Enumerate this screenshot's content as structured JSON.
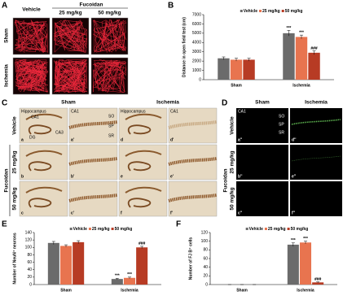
{
  "panel_a": {
    "letter": "A",
    "group_header": "Fucoidan",
    "columns": [
      "Vehicle",
      "25 mg/kg",
      "50 mg/kg"
    ],
    "rows": [
      "Sham",
      "Ischemia"
    ]
  },
  "panel_c": {
    "letter": "C",
    "columns": [
      "Sham",
      "Ischemia"
    ],
    "image_headers": [
      "Hippocampus",
      "CA1",
      "Hippocampus",
      "CA1"
    ],
    "hippocampus_regions": [
      "CA1",
      "DG",
      "CA3"
    ],
    "ca1_layers": [
      "SO",
      "SP",
      "SR"
    ],
    "group_label": "Fucoidan",
    "rows": [
      "Vehicle",
      "25 mg/kg",
      "50 mg/kg"
    ],
    "tiles": [
      [
        "a",
        "a'",
        "d",
        "d'"
      ],
      [
        "b",
        "b'",
        "e",
        "e'"
      ],
      [
        "c",
        "c'",
        "f",
        "f'"
      ]
    ]
  },
  "panel_d": {
    "letter": "D",
    "columns": [
      "Sham",
      "Ischemia"
    ],
    "image_header": "CA1",
    "layers": [
      "SO",
      "SP",
      "SR"
    ],
    "group_label": "Fucoidan",
    "rows": [
      "Vehicle",
      "25 mg/kg",
      "50 mg/kg"
    ],
    "tiles": [
      [
        "a''",
        "d''"
      ],
      [
        "b''",
        "e''"
      ],
      [
        "c''",
        "f''"
      ]
    ]
  },
  "chart_data": [
    {
      "type": "bar",
      "letter": "B",
      "y_label": "Distance in open field test (cm)",
      "categories": [
        "Sham",
        "Ischemia"
      ],
      "series": [
        {
          "name": "Vehicle",
          "color": "#6b6b6b",
          "values": [
            2300,
            5000
          ],
          "errors": [
            150,
            300
          ],
          "significance": [
            null,
            "***"
          ]
        },
        {
          "name": "25 mg/kg",
          "color": "#e8744f",
          "values": [
            2150,
            4600
          ],
          "errors": [
            150,
            200
          ],
          "significance": [
            null,
            "***"
          ]
        },
        {
          "name": "50 mg/kg",
          "color": "#b73b24",
          "values": [
            2150,
            2900
          ],
          "errors": [
            150,
            200
          ],
          "significance": [
            null,
            "###"
          ]
        }
      ],
      "ylim": [
        0,
        7000
      ],
      "yticks": [
        0,
        1000,
        2000,
        3000,
        4000,
        5000,
        6000,
        7000
      ]
    },
    {
      "type": "bar",
      "letter": "E",
      "y_label": "Number of NeuN⁺ neurons",
      "categories": [
        "Sham",
        "Ischemia"
      ],
      "series": [
        {
          "name": "Vehicle",
          "color": "#6b6b6b",
          "values": [
            112,
            15
          ],
          "errors": [
            4,
            2
          ],
          "significance": [
            null,
            "***"
          ]
        },
        {
          "name": "25 mg/kg",
          "color": "#e8744f",
          "values": [
            104,
            18
          ],
          "errors": [
            3,
            2
          ],
          "significance": [
            null,
            "***"
          ]
        },
        {
          "name": "50 mg/kg",
          "color": "#b73b24",
          "values": [
            114,
            100
          ],
          "errors": [
            4,
            3
          ],
          "significance": [
            null,
            "###"
          ]
        }
      ],
      "ylim": [
        0,
        140
      ],
      "yticks": [
        0,
        20,
        40,
        60,
        80,
        100,
        120,
        140
      ]
    },
    {
      "type": "bar",
      "letter": "F",
      "y_label": "Number of FJ B⁺ cells",
      "categories": [
        "Sham",
        "Ischemia"
      ],
      "series": [
        {
          "name": "Vehicle",
          "color": "#6b6b6b",
          "values": [
            0,
            92
          ],
          "errors": [
            0,
            4
          ],
          "significance": [
            null,
            "***"
          ]
        },
        {
          "name": "25 mg/kg",
          "color": "#e8744f",
          "values": [
            0,
            97
          ],
          "errors": [
            0,
            3
          ],
          "significance": [
            null,
            "***"
          ]
        },
        {
          "name": "50 mg/kg",
          "color": "#b73b24",
          "values": [
            0,
            5
          ],
          "errors": [
            0,
            1
          ],
          "significance": [
            null,
            "###"
          ]
        }
      ],
      "ylim": [
        0,
        120
      ],
      "yticks": [
        0,
        20,
        40,
        60,
        80,
        100,
        120
      ]
    }
  ]
}
